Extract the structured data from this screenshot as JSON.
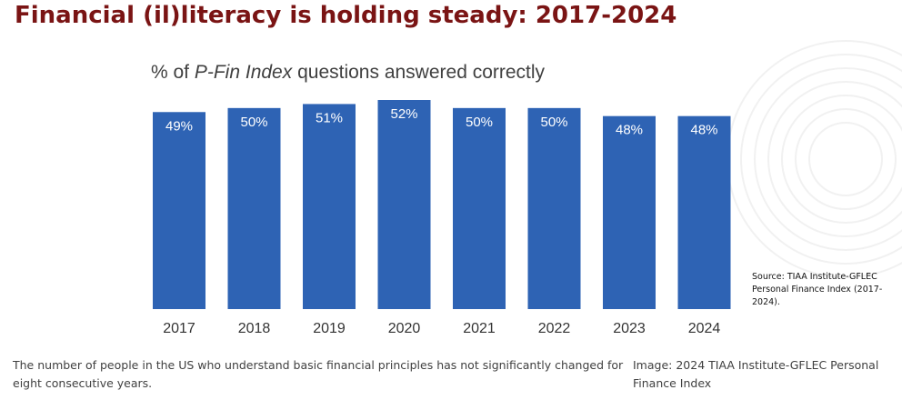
{
  "title": "Financial (il)literacy is holding steady: 2017-2024",
  "subtitle": {
    "prefix": "% of ",
    "emphasis": "P-Fin Index",
    "suffix": " questions answered correctly"
  },
  "source_note": "Source: TIAA Institute-GFLEC Personal Finance Index (2017-2024).",
  "caption": "The number of people in the US who understand basic financial principles has not significantly changed for eight consecutive years.",
  "image_credit": "Image: 2024 TIAA Institute-GFLEC Personal Finance Index",
  "colors": {
    "title": "#7a1414",
    "bar": "#2e63b4",
    "bar_label": "#ffffff",
    "axis_text": "#333333"
  },
  "chart_data": {
    "type": "bar",
    "categories": [
      "2017",
      "2018",
      "2019",
      "2020",
      "2021",
      "2022",
      "2023",
      "2024"
    ],
    "values": [
      49,
      50,
      51,
      52,
      50,
      50,
      48,
      48
    ],
    "value_labels": [
      "49%",
      "50%",
      "51%",
      "52%",
      "50%",
      "50%",
      "48%",
      "48%"
    ],
    "title": "Financial (il)literacy is holding steady: 2017-2024",
    "ylabel": "",
    "xlabel": "",
    "ylim": [
      0,
      52
    ],
    "grid": false,
    "legend": "none"
  }
}
